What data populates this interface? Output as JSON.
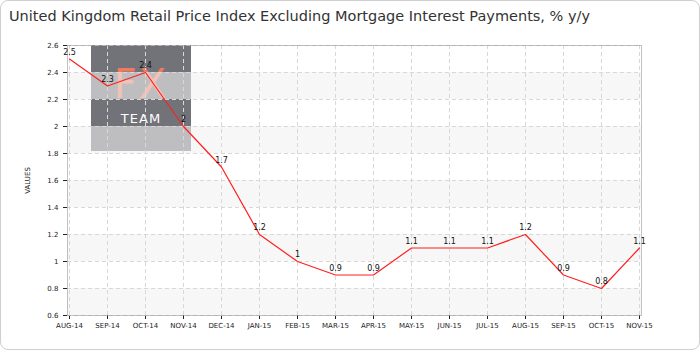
{
  "chart_data": {
    "type": "line",
    "title": "United Kingdom Retail Price Index Excluding Mortgage Interest Payments, % y/y",
    "y_label": "VALUES",
    "annotations": [
      "FX",
      "TEAM"
    ],
    "categories": [
      "AUG-14",
      "SEP-14",
      "OCT-14",
      "NOV-14",
      "DEC-14",
      "JAN-15",
      "FEB-15",
      "MAR-15",
      "APR-15",
      "MAY-15",
      "JUN-15",
      "JUL-15",
      "AUG-15",
      "SEP-15",
      "OCT-15",
      "NOV-15"
    ],
    "values": [
      2.5,
      2.3,
      2.4,
      2,
      1.7,
      1.2,
      1,
      0.9,
      0.9,
      1.1,
      1.1,
      1.1,
      1.2,
      0.9,
      0.8,
      1.1
    ],
    "color": "#ff2020",
    "ylim": [
      0.6,
      2.6
    ],
    "yticks": [
      0.6,
      0.8,
      1,
      1.2,
      1.4,
      1.6,
      1.8,
      2,
      2.2,
      2.4,
      2.6
    ],
    "grid": true,
    "data_labels": true
  }
}
